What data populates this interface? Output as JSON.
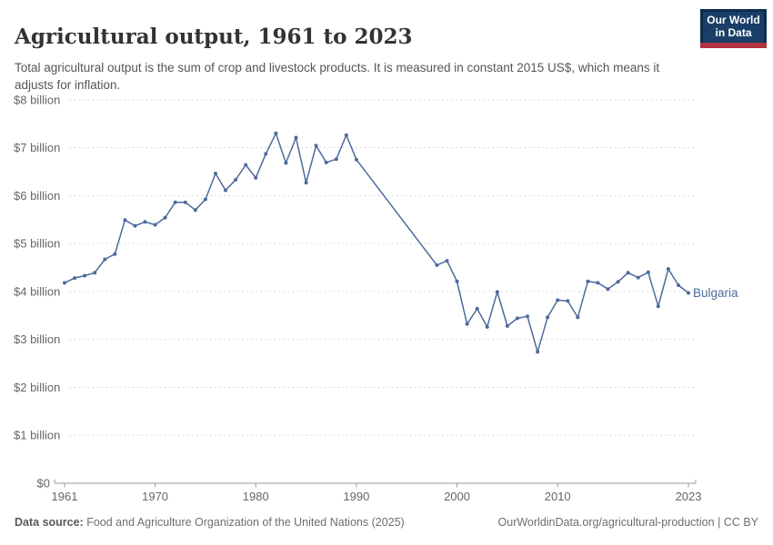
{
  "header": {
    "title": "Agricultural output, 1961 to 2023",
    "subtitle": "Total agricultural output is the sum of crop and livestock products. It is measured in constant 2015 US$, which means it adjusts for inflation.",
    "logo": {
      "line1": "Our World",
      "line2": "in Data"
    }
  },
  "footer": {
    "source_label": "Data source:",
    "source_text": " Food and Agriculture Organization of the United Nations (2025)",
    "link_text": "OurWorldinData.org/agricultural-production",
    "separator": " | ",
    "license_text": "CC BY"
  },
  "colors": {
    "line": "#4C6A9C",
    "grid": "#dcdcdc",
    "axis": "#999999",
    "tick_label": "#666666"
  },
  "chart_data": {
    "type": "line",
    "title": "Agricultural output, 1961 to 2023",
    "entity": "Bulgaria",
    "unit": "constant 2015 US$",
    "xlim": [
      1961,
      2023
    ],
    "ylim_billion": [
      0,
      8
    ],
    "grid": true,
    "legend_position": "end-of-line-label",
    "x_ticks": [
      1961,
      1970,
      1980,
      1990,
      2000,
      2010,
      2023
    ],
    "y_ticks": [
      {
        "value_billion": 0,
        "label": "$0"
      },
      {
        "value_billion": 1,
        "label": "$1 billion"
      },
      {
        "value_billion": 2,
        "label": "$2 billion"
      },
      {
        "value_billion": 3,
        "label": "$3 billion"
      },
      {
        "value_billion": 4,
        "label": "$4 billion"
      },
      {
        "value_billion": 5,
        "label": "$5 billion"
      },
      {
        "value_billion": 6,
        "label": "$6 billion"
      },
      {
        "value_billion": 7,
        "label": "$7 billion"
      },
      {
        "value_billion": 8,
        "label": "$8 billion"
      }
    ],
    "series": [
      {
        "name": "Bulgaria",
        "color": "#4C6A9C",
        "points": [
          {
            "year": 1961,
            "value_billion": 4.18
          },
          {
            "year": 1962,
            "value_billion": 4.28
          },
          {
            "year": 1963,
            "value_billion": 4.33
          },
          {
            "year": 1964,
            "value_billion": 4.39
          },
          {
            "year": 1965,
            "value_billion": 4.67
          },
          {
            "year": 1966,
            "value_billion": 4.78
          },
          {
            "year": 1967,
            "value_billion": 5.49
          },
          {
            "year": 1968,
            "value_billion": 5.37
          },
          {
            "year": 1969,
            "value_billion": 5.45
          },
          {
            "year": 1970,
            "value_billion": 5.39
          },
          {
            "year": 1971,
            "value_billion": 5.54
          },
          {
            "year": 1972,
            "value_billion": 5.86
          },
          {
            "year": 1973,
            "value_billion": 5.86
          },
          {
            "year": 1974,
            "value_billion": 5.7
          },
          {
            "year": 1975,
            "value_billion": 5.92
          },
          {
            "year": 1976,
            "value_billion": 6.46
          },
          {
            "year": 1977,
            "value_billion": 6.11
          },
          {
            "year": 1978,
            "value_billion": 6.33
          },
          {
            "year": 1979,
            "value_billion": 6.64
          },
          {
            "year": 1980,
            "value_billion": 6.37
          },
          {
            "year": 1981,
            "value_billion": 6.87
          },
          {
            "year": 1982,
            "value_billion": 7.3
          },
          {
            "year": 1983,
            "value_billion": 6.68
          },
          {
            "year": 1984,
            "value_billion": 7.21
          },
          {
            "year": 1985,
            "value_billion": 6.27
          },
          {
            "year": 1986,
            "value_billion": 7.04
          },
          {
            "year": 1987,
            "value_billion": 6.69
          },
          {
            "year": 1988,
            "value_billion": 6.76
          },
          {
            "year": 1989,
            "value_billion": 7.26
          },
          {
            "year": 1990,
            "value_billion": 6.75
          },
          {
            "year": 1991,
            "value_billion": null
          },
          {
            "year": 1992,
            "value_billion": null
          },
          {
            "year": 1993,
            "value_billion": null
          },
          {
            "year": 1994,
            "value_billion": null
          },
          {
            "year": 1995,
            "value_billion": null
          },
          {
            "year": 1996,
            "value_billion": null
          },
          {
            "year": 1997,
            "value_billion": null
          },
          {
            "year": 1998,
            "value_billion": 4.55
          },
          {
            "year": 1999,
            "value_billion": 4.64
          },
          {
            "year": 2000,
            "value_billion": 4.21
          },
          {
            "year": 2001,
            "value_billion": 3.32
          },
          {
            "year": 2002,
            "value_billion": 3.64
          },
          {
            "year": 2003,
            "value_billion": 3.26
          },
          {
            "year": 2004,
            "value_billion": 3.99
          },
          {
            "year": 2005,
            "value_billion": 3.28
          },
          {
            "year": 2006,
            "value_billion": 3.44
          },
          {
            "year": 2007,
            "value_billion": 3.48
          },
          {
            "year": 2008,
            "value_billion": 2.74
          },
          {
            "year": 2009,
            "value_billion": 3.46
          },
          {
            "year": 2010,
            "value_billion": 3.82
          },
          {
            "year": 2011,
            "value_billion": 3.8
          },
          {
            "year": 2012,
            "value_billion": 3.46
          },
          {
            "year": 2013,
            "value_billion": 4.21
          },
          {
            "year": 2014,
            "value_billion": 4.18
          },
          {
            "year": 2015,
            "value_billion": 4.05
          },
          {
            "year": 2016,
            "value_billion": 4.2
          },
          {
            "year": 2017,
            "value_billion": 4.39
          },
          {
            "year": 2018,
            "value_billion": 4.29
          },
          {
            "year": 2019,
            "value_billion": 4.4
          },
          {
            "year": 2020,
            "value_billion": 3.69
          },
          {
            "year": 2021,
            "value_billion": 4.47
          },
          {
            "year": 2022,
            "value_billion": 4.13
          },
          {
            "year": 2023,
            "value_billion": 3.97
          }
        ]
      }
    ]
  }
}
